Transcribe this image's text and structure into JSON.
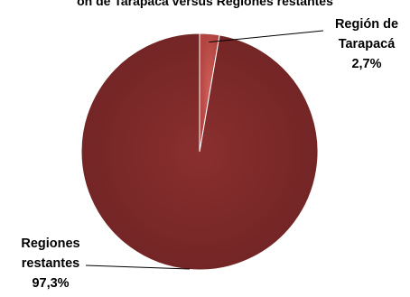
{
  "chart_data": {
    "type": "pie",
    "title": "ón de Tarapacá versus Regiones restantes",
    "slices": [
      {
        "label_lines": [
          "Región de",
          "Tarapacá",
          "2,7%"
        ],
        "value": 2.7,
        "color": "#c0504d"
      },
      {
        "label_lines": [
          "Regiones",
          "restantes",
          "97,3%"
        ],
        "value": 97.3,
        "color": "#7f2a2a"
      }
    ],
    "legend": "none"
  }
}
